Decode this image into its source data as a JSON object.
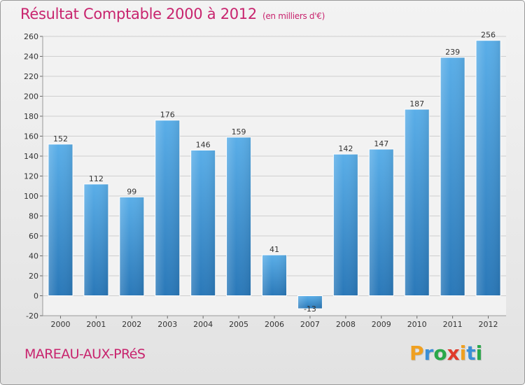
{
  "header": {
    "title": "Résultat Comptable 2000 à 2012",
    "subtitle": "(en milliers d'€)"
  },
  "footer": {
    "commune": "MAREAU-AUX-PRéS",
    "brand": "Proxiti",
    "brand_letters": [
      {
        "ch": "P",
        "color": "#f0a020"
      },
      {
        "ch": "r",
        "color": "#3b8fd6"
      },
      {
        "ch": "o",
        "color": "#2aa84a"
      },
      {
        "ch": "x",
        "color": "#e03a2b"
      },
      {
        "ch": "i",
        "color": "#f0a020"
      },
      {
        "ch": "t",
        "color": "#3b8fd6"
      },
      {
        "ch": "i",
        "color": "#2aa84a"
      }
    ]
  },
  "colors": {
    "bar_top": "#5aaee8",
    "bar_bottom": "#2a78b8",
    "accent": "#c8246e",
    "grid": "#cfcfcf"
  },
  "chart_data": {
    "type": "bar",
    "title": "Résultat Comptable 2000 à 2012",
    "ylabel": "en milliers d'€",
    "categories": [
      "2000",
      "2001",
      "2002",
      "2003",
      "2004",
      "2005",
      "2006",
      "2007",
      "2008",
      "2009",
      "2010",
      "2011",
      "2012"
    ],
    "values": [
      152,
      112,
      99,
      176,
      146,
      159,
      41,
      -13,
      142,
      147,
      187,
      239,
      256
    ],
    "ylim": [
      -20,
      260
    ],
    "yticks": [
      -20,
      0,
      20,
      40,
      60,
      80,
      100,
      120,
      140,
      160,
      180,
      200,
      220,
      240,
      260
    ],
    "grid": true
  }
}
